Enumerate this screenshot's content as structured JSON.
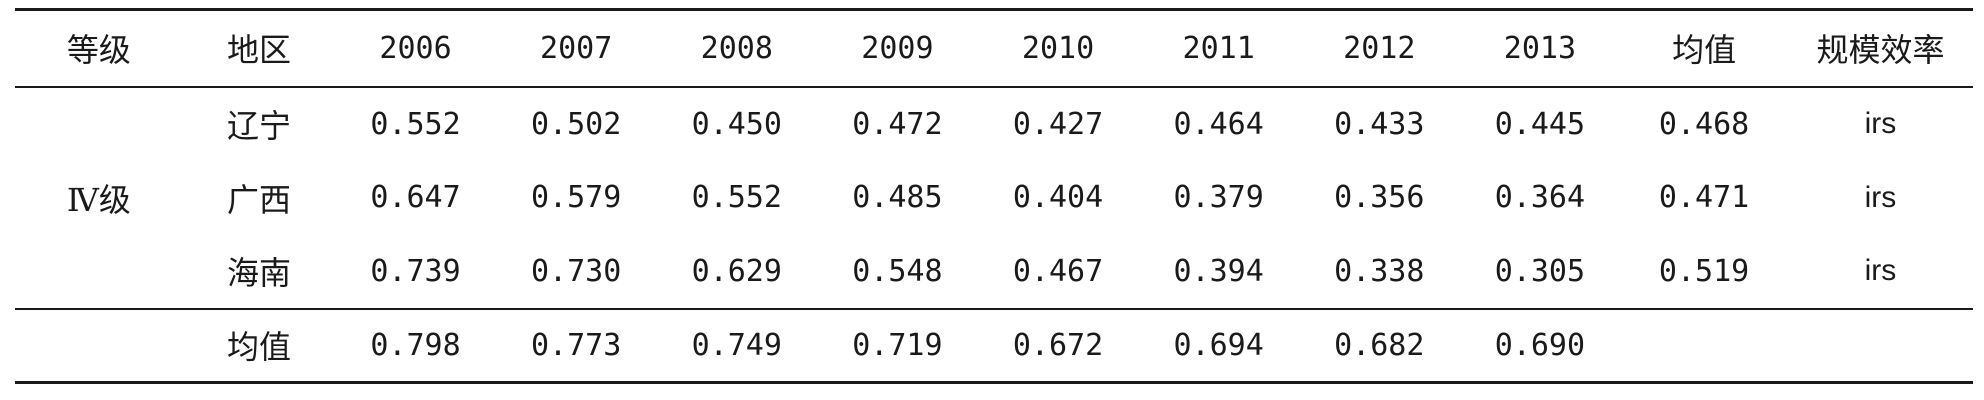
{
  "table": {
    "headers": {
      "grade": "等级",
      "region": "地区",
      "years": [
        "2006",
        "2007",
        "2008",
        "2009",
        "2010",
        "2011",
        "2012",
        "2013"
      ],
      "mean": "均值",
      "scale_efficiency": "规模效率"
    },
    "grade_label": "Ⅳ级",
    "rows": [
      {
        "region": "辽宁",
        "values": [
          "0.552",
          "0.502",
          "0.450",
          "0.472",
          "0.427",
          "0.464",
          "0.433",
          "0.445"
        ],
        "mean": "0.468",
        "scale_efficiency": "irs"
      },
      {
        "region": "广西",
        "values": [
          "0.647",
          "0.579",
          "0.552",
          "0.485",
          "0.404",
          "0.379",
          "0.356",
          "0.364"
        ],
        "mean": "0.471",
        "scale_efficiency": "irs"
      },
      {
        "region": "海南",
        "values": [
          "0.739",
          "0.730",
          "0.629",
          "0.548",
          "0.467",
          "0.394",
          "0.338",
          "0.305"
        ],
        "mean": "0.519",
        "scale_efficiency": "irs"
      }
    ],
    "mean_row": {
      "label": "均值",
      "values": [
        "0.798",
        "0.773",
        "0.749",
        "0.719",
        "0.672",
        "0.694",
        "0.682",
        "0.690"
      ]
    }
  }
}
